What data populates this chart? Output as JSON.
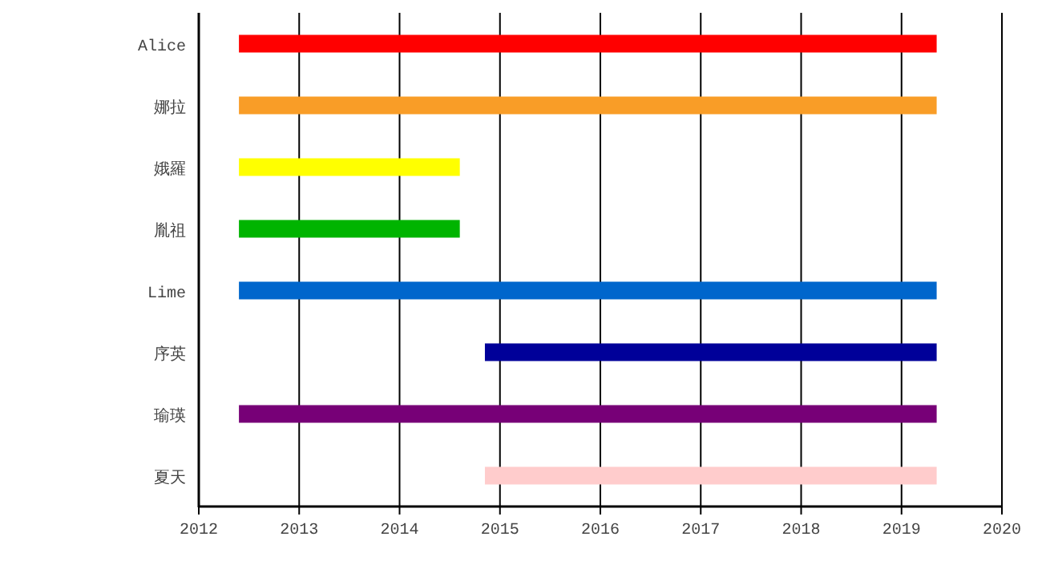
{
  "chart_data": {
    "type": "bar",
    "orientation": "horizontal",
    "categories": [
      "Alice",
      "娜拉",
      "娥羅",
      "胤祖",
      "Lime",
      "序英",
      "瑜瑛",
      "夏天"
    ],
    "base": [
      2012.4,
      2012.4,
      2012.4,
      2012.4,
      2012.4,
      2014.85,
      2012.4,
      2014.85
    ],
    "values": [
      6.95,
      6.95,
      2.2,
      2.2,
      6.95,
      4.5,
      6.95,
      4.5
    ],
    "colors": [
      "#ff0000",
      "#f99d27",
      "#ffff00",
      "#00b400",
      "#0066cc",
      "#000099",
      "#770077",
      "#ffcccc"
    ],
    "xlim": [
      2012,
      2020
    ],
    "xticks": [
      2012,
      2013,
      2014,
      2015,
      2016,
      2017,
      2018,
      2019,
      2020
    ],
    "grid": "x"
  }
}
